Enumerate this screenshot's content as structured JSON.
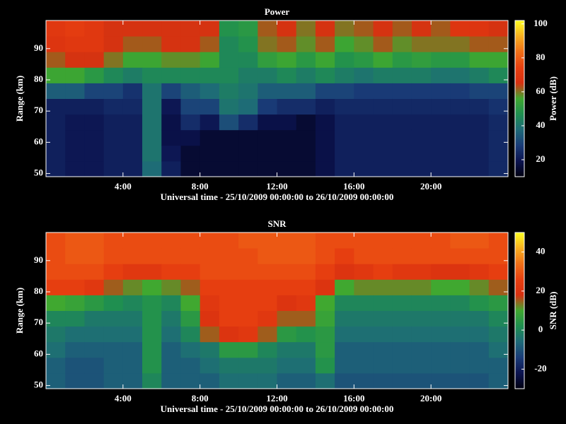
{
  "chart_data": [
    {
      "type": "heatmap",
      "title": "Power",
      "xlabel": "Universal time - 25/10/2009 00:00:00 to 26/10/2009 00:00:00",
      "ylabel": "Range (km)",
      "colorbar_label": "Power (dB)",
      "xlim": [
        0,
        24
      ],
      "ylim": [
        49,
        99
      ],
      "clim": [
        10,
        102
      ],
      "xticks": [
        {
          "value": 4,
          "label": "4:00"
        },
        {
          "value": 8,
          "label": "8:00"
        },
        {
          "value": 12,
          "label": "12:00"
        },
        {
          "value": 16,
          "label": "16:00"
        },
        {
          "value": 20,
          "label": "20:00"
        }
      ],
      "yticks": [
        50,
        60,
        70,
        80,
        90
      ],
      "cticks": [
        20,
        40,
        60,
        80,
        100
      ],
      "colormap": [
        "#000010",
        "#0c1450",
        "#1a3c78",
        "#1e6a78",
        "#1f8f50",
        "#40a830",
        "#d83010",
        "#e84010",
        "#f07018",
        "#f8b020",
        "#ffff20"
      ],
      "x": [
        0,
        1,
        2,
        3,
        4,
        5,
        6,
        7,
        8,
        9,
        10,
        11,
        12,
        13,
        14,
        15,
        16,
        17,
        18,
        19,
        20,
        21,
        22,
        23,
        24
      ],
      "y": [
        49,
        54,
        59,
        64,
        69,
        74,
        79,
        84,
        89,
        94,
        99
      ],
      "values": [
        [
          22,
          22,
          22,
          22,
          22,
          35,
          55,
          62,
          68,
          70
        ],
        [
          20,
          20,
          20,
          20,
          22,
          35,
          55,
          65,
          70,
          72
        ],
        [
          20,
          20,
          20,
          20,
          22,
          30,
          50,
          65,
          70,
          70
        ],
        [
          22,
          22,
          22,
          22,
          24,
          30,
          45,
          60,
          65,
          65
        ],
        [
          22,
          22,
          22,
          22,
          24,
          26,
          42,
          55,
          62,
          65
        ],
        [
          38,
          40,
          40,
          40,
          40,
          40,
          45,
          55,
          62,
          65
        ],
        [
          22,
          20,
          18,
          18,
          20,
          30,
          45,
          58,
          65,
          65
        ],
        [
          15,
          15,
          18,
          25,
          30,
          35,
          45,
          58,
          65,
          65
        ],
        [
          15,
          15,
          15,
          20,
          30,
          38,
          45,
          55,
          62,
          65
        ],
        [
          15,
          15,
          15,
          32,
          40,
          42,
          45,
          45,
          45,
          48
        ],
        [
          15,
          15,
          15,
          25,
          38,
          40,
          42,
          45,
          48,
          50
        ],
        [
          15,
          15,
          15,
          18,
          28,
          35,
          42,
          52,
          60,
          62
        ],
        [
          15,
          15,
          15,
          18,
          25,
          35,
          45,
          55,
          62,
          65
        ],
        [
          15,
          15,
          15,
          15,
          25,
          35,
          42,
          50,
          58,
          60
        ],
        [
          18,
          18,
          18,
          18,
          22,
          30,
          45,
          55,
          62,
          65
        ],
        [
          22,
          22,
          22,
          22,
          24,
          30,
          42,
          48,
          55,
          60
        ],
        [
          22,
          22,
          22,
          22,
          24,
          28,
          40,
          50,
          58,
          62
        ],
        [
          22,
          22,
          22,
          22,
          24,
          28,
          42,
          55,
          62,
          65
        ],
        [
          22,
          22,
          22,
          22,
          24,
          28,
          42,
          50,
          58,
          62
        ],
        [
          22,
          22,
          22,
          22,
          24,
          28,
          42,
          52,
          60,
          65
        ],
        [
          22,
          22,
          22,
          22,
          24,
          28,
          40,
          50,
          60,
          62
        ],
        [
          22,
          22,
          22,
          22,
          24,
          28,
          40,
          50,
          60,
          68
        ],
        [
          22,
          22,
          22,
          22,
          24,
          30,
          42,
          55,
          62,
          68
        ],
        [
          24,
          24,
          24,
          24,
          26,
          30,
          45,
          55,
          62,
          65
        ]
      ]
    },
    {
      "type": "heatmap",
      "title": "SNR",
      "xlabel": "Universal time - 25/10/2009 00:00:00 to 26/10/2009 00:00:00",
      "ylabel": "Range (km)",
      "colorbar_label": "SNR (dB)",
      "xlim": [
        0,
        24
      ],
      "ylim": [
        49,
        99
      ],
      "clim": [
        -30,
        50
      ],
      "xticks": [
        {
          "value": 4,
          "label": "4:00"
        },
        {
          "value": 8,
          "label": "8:00"
        },
        {
          "value": 12,
          "label": "12:00"
        },
        {
          "value": 16,
          "label": "16:00"
        },
        {
          "value": 20,
          "label": "20:00"
        }
      ],
      "yticks": [
        50,
        60,
        70,
        80,
        90
      ],
      "cticks": [
        -20,
        0,
        20,
        40
      ],
      "colormap": [
        "#000010",
        "#0c1450",
        "#1a3c78",
        "#1e6a78",
        "#1f8f50",
        "#40a830",
        "#d83010",
        "#e84010",
        "#f07018",
        "#f8b020",
        "#ffff20"
      ],
      "x": [
        0,
        1,
        2,
        3,
        4,
        5,
        6,
        7,
        8,
        9,
        10,
        11,
        12,
        13,
        14,
        15,
        16,
        17,
        18,
        19,
        20,
        21,
        22,
        23,
        24
      ],
      "y": [
        49,
        54,
        59,
        64,
        69,
        74,
        79,
        84,
        89,
        94,
        99
      ],
      "values": [
        [
          -8,
          -8,
          -5,
          -3,
          0,
          10,
          25,
          28,
          28,
          28
        ],
        [
          -10,
          -10,
          -8,
          -5,
          0,
          8,
          25,
          28,
          30,
          30
        ],
        [
          -10,
          -10,
          -8,
          -5,
          -3,
          5,
          22,
          28,
          30,
          30
        ],
        [
          -8,
          -8,
          -8,
          -5,
          -3,
          2,
          15,
          25,
          28,
          28
        ],
        [
          -8,
          -8,
          -8,
          -5,
          -3,
          0,
          12,
          22,
          28,
          28
        ],
        [
          0,
          3,
          3,
          3,
          3,
          3,
          10,
          22,
          28,
          28
        ],
        [
          -8,
          -8,
          -8,
          -5,
          -3,
          0,
          12,
          25,
          28,
          28
        ],
        [
          -8,
          -8,
          -5,
          0,
          5,
          10,
          15,
          25,
          28,
          28
        ],
        [
          -8,
          -5,
          -3,
          15,
          20,
          22,
          25,
          28,
          28,
          28
        ],
        [
          -5,
          -3,
          5,
          20,
          25,
          25,
          25,
          28,
          28,
          28
        ],
        [
          -5,
          -3,
          5,
          22,
          25,
          25,
          25,
          28,
          28,
          30
        ],
        [
          -5,
          -3,
          0,
          15,
          22,
          25,
          25,
          28,
          30,
          30
        ],
        [
          -8,
          -5,
          -3,
          5,
          15,
          20,
          25,
          28,
          30,
          30
        ],
        [
          -8,
          -5,
          -3,
          3,
          15,
          22,
          25,
          28,
          30,
          30
        ],
        [
          -5,
          3,
          5,
          5,
          8,
          10,
          20,
          25,
          28,
          28
        ],
        [
          -10,
          -8,
          -8,
          -5,
          -3,
          0,
          10,
          20,
          25,
          28
        ],
        [
          -10,
          -8,
          -8,
          -5,
          -3,
          0,
          12,
          22,
          28,
          28
        ],
        [
          -10,
          -8,
          -8,
          -5,
          -3,
          0,
          12,
          25,
          28,
          28
        ],
        [
          -10,
          -8,
          -8,
          -5,
          -3,
          0,
          12,
          22,
          28,
          28
        ],
        [
          -10,
          -8,
          -8,
          -5,
          -3,
          0,
          12,
          22,
          28,
          28
        ],
        [
          -10,
          -8,
          -8,
          -5,
          -3,
          0,
          10,
          20,
          28,
          28
        ],
        [
          -10,
          -8,
          -8,
          -5,
          -3,
          0,
          10,
          20,
          28,
          30
        ],
        [
          -10,
          -8,
          -8,
          -5,
          -3,
          3,
          12,
          22,
          28,
          30
        ],
        [
          -8,
          -8,
          -5,
          -3,
          0,
          5,
          15,
          25,
          28,
          28
        ]
      ]
    }
  ]
}
